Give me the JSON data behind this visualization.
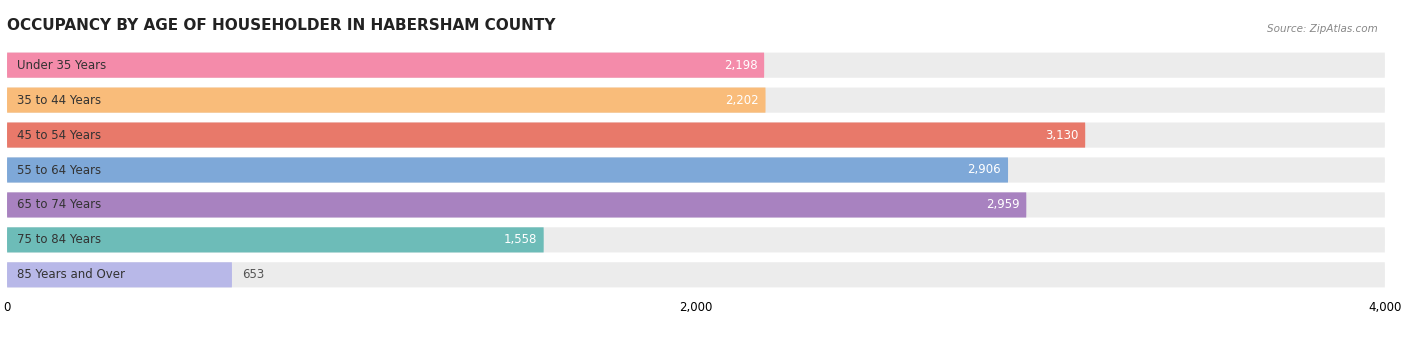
{
  "title": "OCCUPANCY BY AGE OF HOUSEHOLDER IN HABERSHAM COUNTY",
  "source": "Source: ZipAtlas.com",
  "categories": [
    "Under 35 Years",
    "35 to 44 Years",
    "45 to 54 Years",
    "55 to 64 Years",
    "65 to 74 Years",
    "75 to 84 Years",
    "85 Years and Over"
  ],
  "values": [
    2198,
    2202,
    3130,
    2906,
    2959,
    1558,
    653
  ],
  "bar_colors": [
    "#f48baa",
    "#f9bc7a",
    "#e8796a",
    "#7ea8d8",
    "#a882c0",
    "#6dbcb8",
    "#b8b8e8"
  ],
  "bar_bg_colors": [
    "#ececec",
    "#ececec",
    "#ececec",
    "#ececec",
    "#ececec",
    "#ececec",
    "#ececec"
  ],
  "xlim_min": 0,
  "xlim_max": 4000,
  "xticks": [
    0,
    2000,
    4000
  ],
  "background_color": "#ffffff",
  "title_fontsize": 11,
  "label_fontsize": 8.5,
  "value_fontsize": 8.5
}
